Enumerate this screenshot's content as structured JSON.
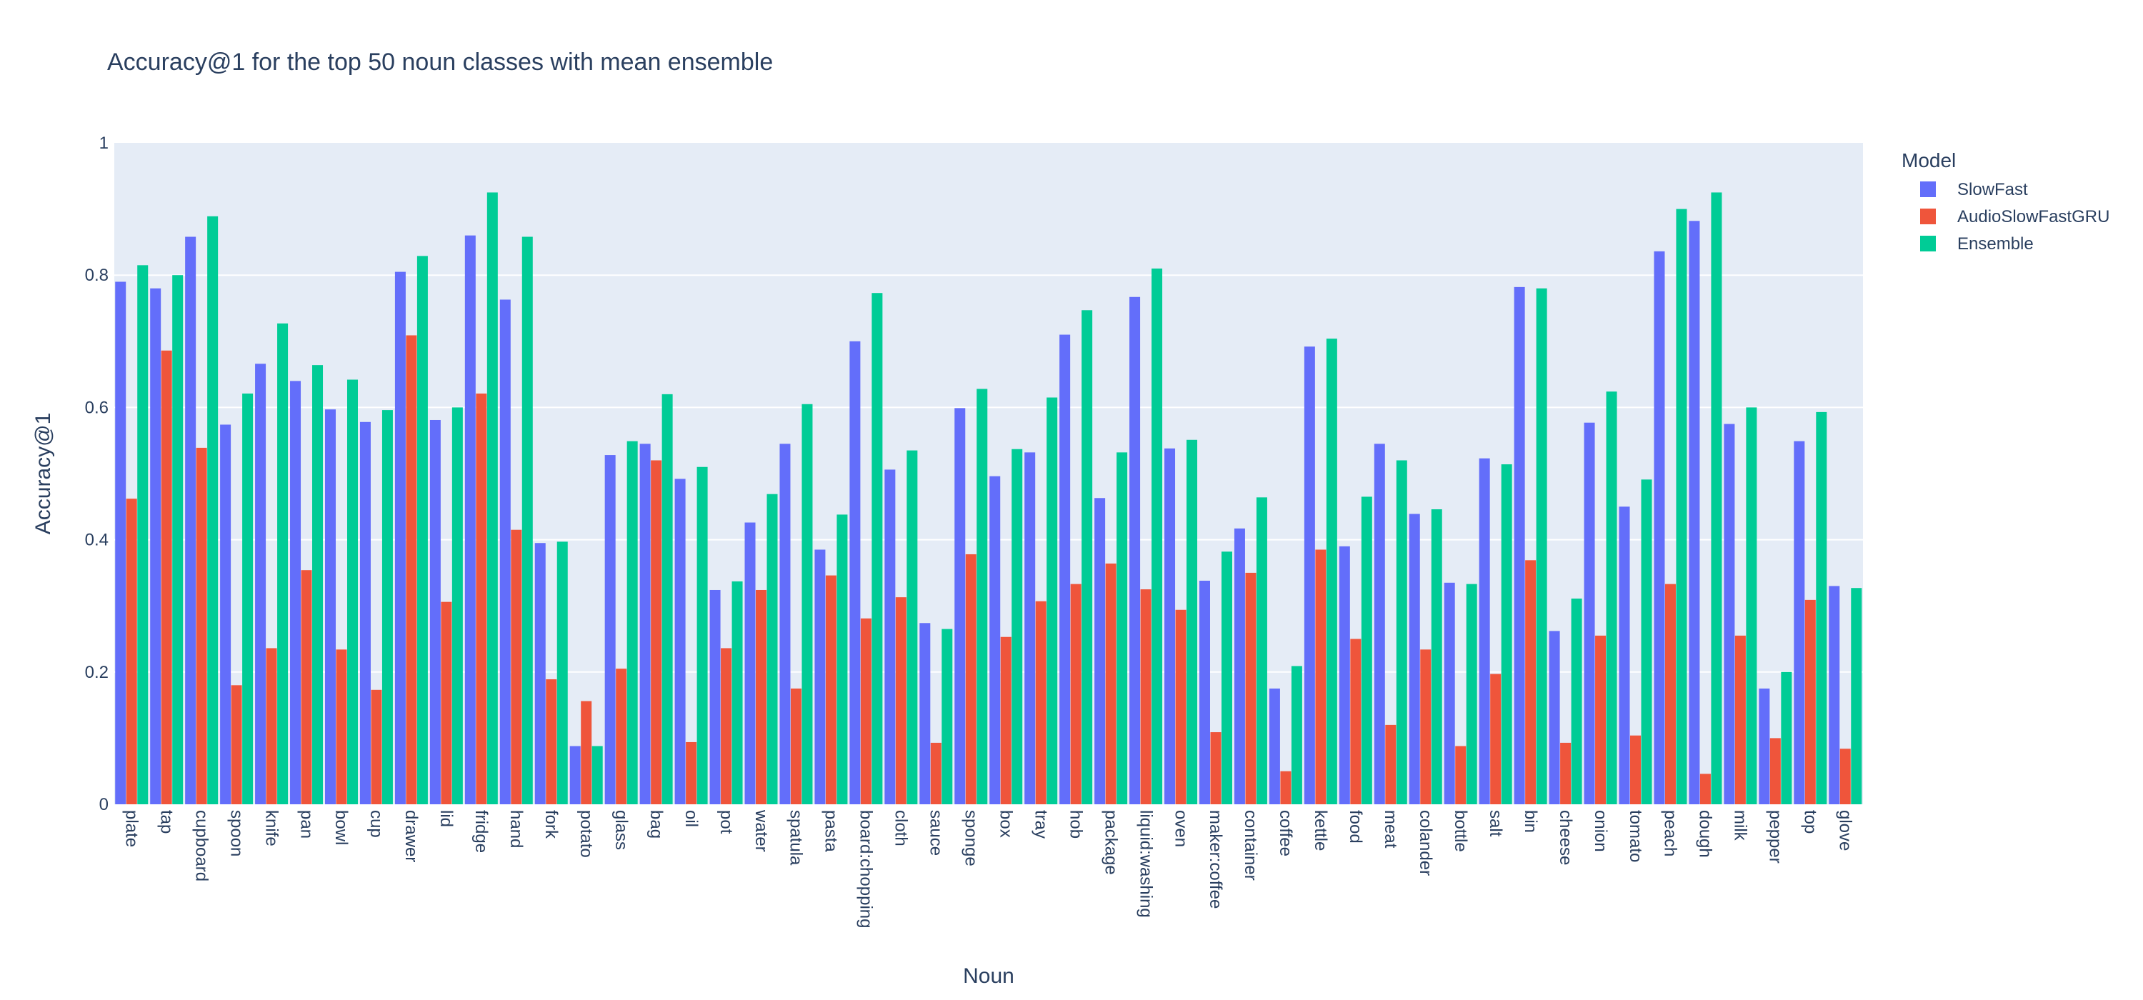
{
  "chart_data": {
    "type": "bar",
    "title": "Accuracy@1 for the top 50 noun classes with mean ensemble",
    "xlabel": "Noun",
    "ylabel": "Accuracy@1",
    "ylim": [
      0,
      1
    ],
    "yticks": [
      0,
      0.2,
      0.4,
      0.6,
      0.8,
      1
    ],
    "grid": true,
    "legend_title": "Model",
    "legend_position": "top-right",
    "categories": [
      "plate",
      "tap",
      "cupboard",
      "spoon",
      "knife",
      "pan",
      "bowl",
      "cup",
      "drawer",
      "lid",
      "fridge",
      "hand",
      "fork",
      "potato",
      "glass",
      "bag",
      "oil",
      "pot",
      "water",
      "spatula",
      "pasta",
      "board:chopping",
      "cloth",
      "sauce",
      "sponge",
      "box",
      "tray",
      "hob",
      "package",
      "liquid:washing",
      "oven",
      "maker:coffee",
      "container",
      "coffee",
      "kettle",
      "food",
      "meat",
      "colander",
      "bottle",
      "salt",
      "bin",
      "cheese",
      "onion",
      "tomato",
      "peach",
      "dough",
      "milk",
      "pepper",
      "top",
      "glove"
    ],
    "series": [
      {
        "name": "SlowFast",
        "color": "#636efa",
        "values": [
          0.79,
          0.78,
          0.858,
          0.574,
          0.666,
          0.64,
          0.597,
          0.578,
          0.805,
          0.581,
          0.86,
          0.763,
          0.395,
          0.088,
          0.528,
          0.545,
          0.492,
          0.324,
          0.426,
          0.545,
          0.385,
          0.7,
          0.506,
          0.274,
          0.599,
          0.496,
          0.532,
          0.71,
          0.463,
          0.767,
          0.538,
          0.338,
          0.417,
          0.175,
          0.692,
          0.39,
          0.545,
          0.439,
          0.335,
          0.523,
          0.782,
          0.262,
          0.577,
          0.45,
          0.836,
          0.882,
          0.575,
          0.175,
          0.549,
          0.33
        ]
      },
      {
        "name": "AudioSlowFastGRU",
        "color": "#ef553b",
        "values": [
          0.462,
          0.686,
          0.539,
          0.18,
          0.236,
          0.354,
          0.234,
          0.173,
          0.709,
          0.306,
          0.621,
          0.415,
          0.189,
          0.156,
          0.205,
          0.52,
          0.094,
          0.236,
          0.324,
          0.175,
          0.346,
          0.281,
          0.313,
          0.093,
          0.378,
          0.253,
          0.307,
          0.333,
          0.364,
          0.325,
          0.294,
          0.109,
          0.35,
          0.05,
          0.385,
          0.25,
          0.12,
          0.234,
          0.088,
          0.197,
          0.369,
          0.093,
          0.255,
          0.104,
          0.333,
          0.046,
          0.255,
          0.1,
          0.309,
          0.084
        ]
      },
      {
        "name": "Ensemble",
        "color": "#00cc96",
        "values": [
          0.815,
          0.8,
          0.889,
          0.621,
          0.727,
          0.664,
          0.642,
          0.596,
          0.829,
          0.6,
          0.925,
          0.858,
          0.397,
          0.088,
          0.549,
          0.62,
          0.51,
          0.337,
          0.469,
          0.605,
          0.438,
          0.773,
          0.535,
          0.265,
          0.628,
          0.537,
          0.615,
          0.747,
          0.532,
          0.81,
          0.551,
          0.382,
          0.464,
          0.209,
          0.704,
          0.465,
          0.52,
          0.446,
          0.333,
          0.514,
          0.78,
          0.311,
          0.624,
          0.491,
          0.9,
          0.925,
          0.6,
          0.2,
          0.593,
          0.327
        ]
      }
    ]
  }
}
